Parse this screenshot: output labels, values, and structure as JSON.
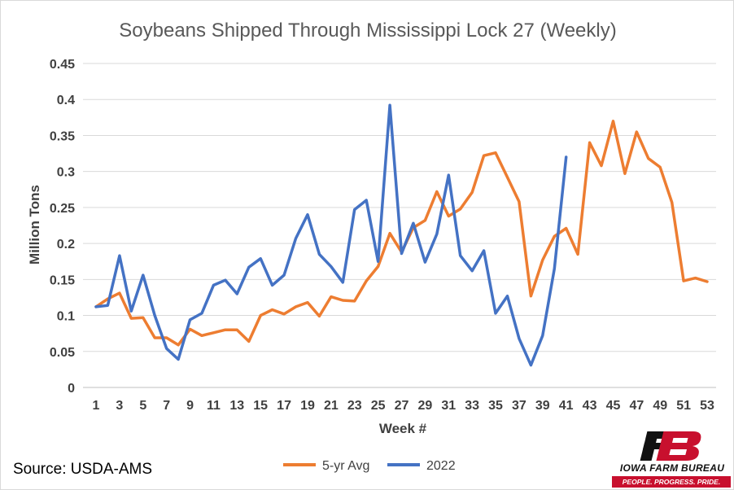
{
  "chart_data": {
    "type": "line",
    "title": "Soybeans Shipped Through Mississippi Lock 27 (Weekly)",
    "xlabel": "Week #",
    "ylabel": "Million Tons",
    "ylim": [
      0,
      0.45
    ],
    "yticks": [
      "0",
      "0.05",
      "0.1",
      "0.15",
      "0.2",
      "0.25",
      "0.3",
      "0.35",
      "0.4",
      "0.45"
    ],
    "xticks": [
      "1",
      "3",
      "5",
      "7",
      "9",
      "11",
      "13",
      "15",
      "17",
      "19",
      "21",
      "23",
      "25",
      "27",
      "29",
      "31",
      "33",
      "35",
      "37",
      "39",
      "41",
      "43",
      "45",
      "47",
      "49",
      "51",
      "53"
    ],
    "grid": true,
    "legend": "bottom",
    "series": [
      {
        "name": "5-yr Avg",
        "color": "#ed7d31",
        "x": [
          1,
          2,
          3,
          4,
          5,
          6,
          7,
          8,
          9,
          10,
          11,
          12,
          13,
          14,
          15,
          16,
          17,
          18,
          19,
          20,
          21,
          22,
          23,
          24,
          25,
          26,
          27,
          28,
          29,
          30,
          31,
          32,
          33,
          34,
          35,
          36,
          37,
          38,
          39,
          40,
          41,
          42,
          43,
          44,
          45,
          46,
          47,
          48,
          49,
          50,
          51,
          52,
          53
        ],
        "values": [
          0.112,
          0.123,
          0.131,
          0.096,
          0.097,
          0.069,
          0.069,
          0.059,
          0.081,
          0.072,
          0.076,
          0.08,
          0.08,
          0.064,
          0.1,
          0.108,
          0.102,
          0.112,
          0.118,
          0.099,
          0.126,
          0.121,
          0.12,
          0.148,
          0.168,
          0.214,
          0.188,
          0.222,
          0.232,
          0.272,
          0.238,
          0.248,
          0.271,
          0.322,
          0.326,
          0.292,
          0.258,
          0.127,
          0.177,
          0.21,
          0.221,
          0.185,
          0.34,
          0.308,
          0.37,
          0.297,
          0.355,
          0.318,
          0.306,
          0.257,
          0.148,
          0.152,
          0.147
        ]
      },
      {
        "name": "2022",
        "color": "#4472c4",
        "x": [
          1,
          2,
          3,
          4,
          5,
          6,
          7,
          8,
          9,
          10,
          11,
          12,
          13,
          14,
          15,
          16,
          17,
          18,
          19,
          20,
          21,
          22,
          23,
          24,
          25,
          26,
          27,
          28,
          29,
          30,
          31,
          32,
          33,
          34,
          35,
          36,
          37,
          38,
          39,
          40,
          41
        ],
        "values": [
          0.112,
          0.114,
          0.183,
          0.106,
          0.156,
          0.1,
          0.054,
          0.039,
          0.094,
          0.103,
          0.142,
          0.149,
          0.13,
          0.167,
          0.179,
          0.142,
          0.156,
          0.207,
          0.24,
          0.185,
          0.168,
          0.146,
          0.247,
          0.26,
          0.175,
          0.392,
          0.186,
          0.228,
          0.174,
          0.213,
          0.295,
          0.183,
          0.162,
          0.19,
          0.103,
          0.127,
          0.068,
          0.031,
          0.072,
          0.165,
          0.32
        ]
      }
    ]
  },
  "source": "Source: USDA-AMS",
  "logo": {
    "mark": "FB",
    "name": "IOWA FARM BUREAU",
    "tagline": "PEOPLE. PROGRESS. PRIDE.",
    "color": "#c8102e"
  }
}
